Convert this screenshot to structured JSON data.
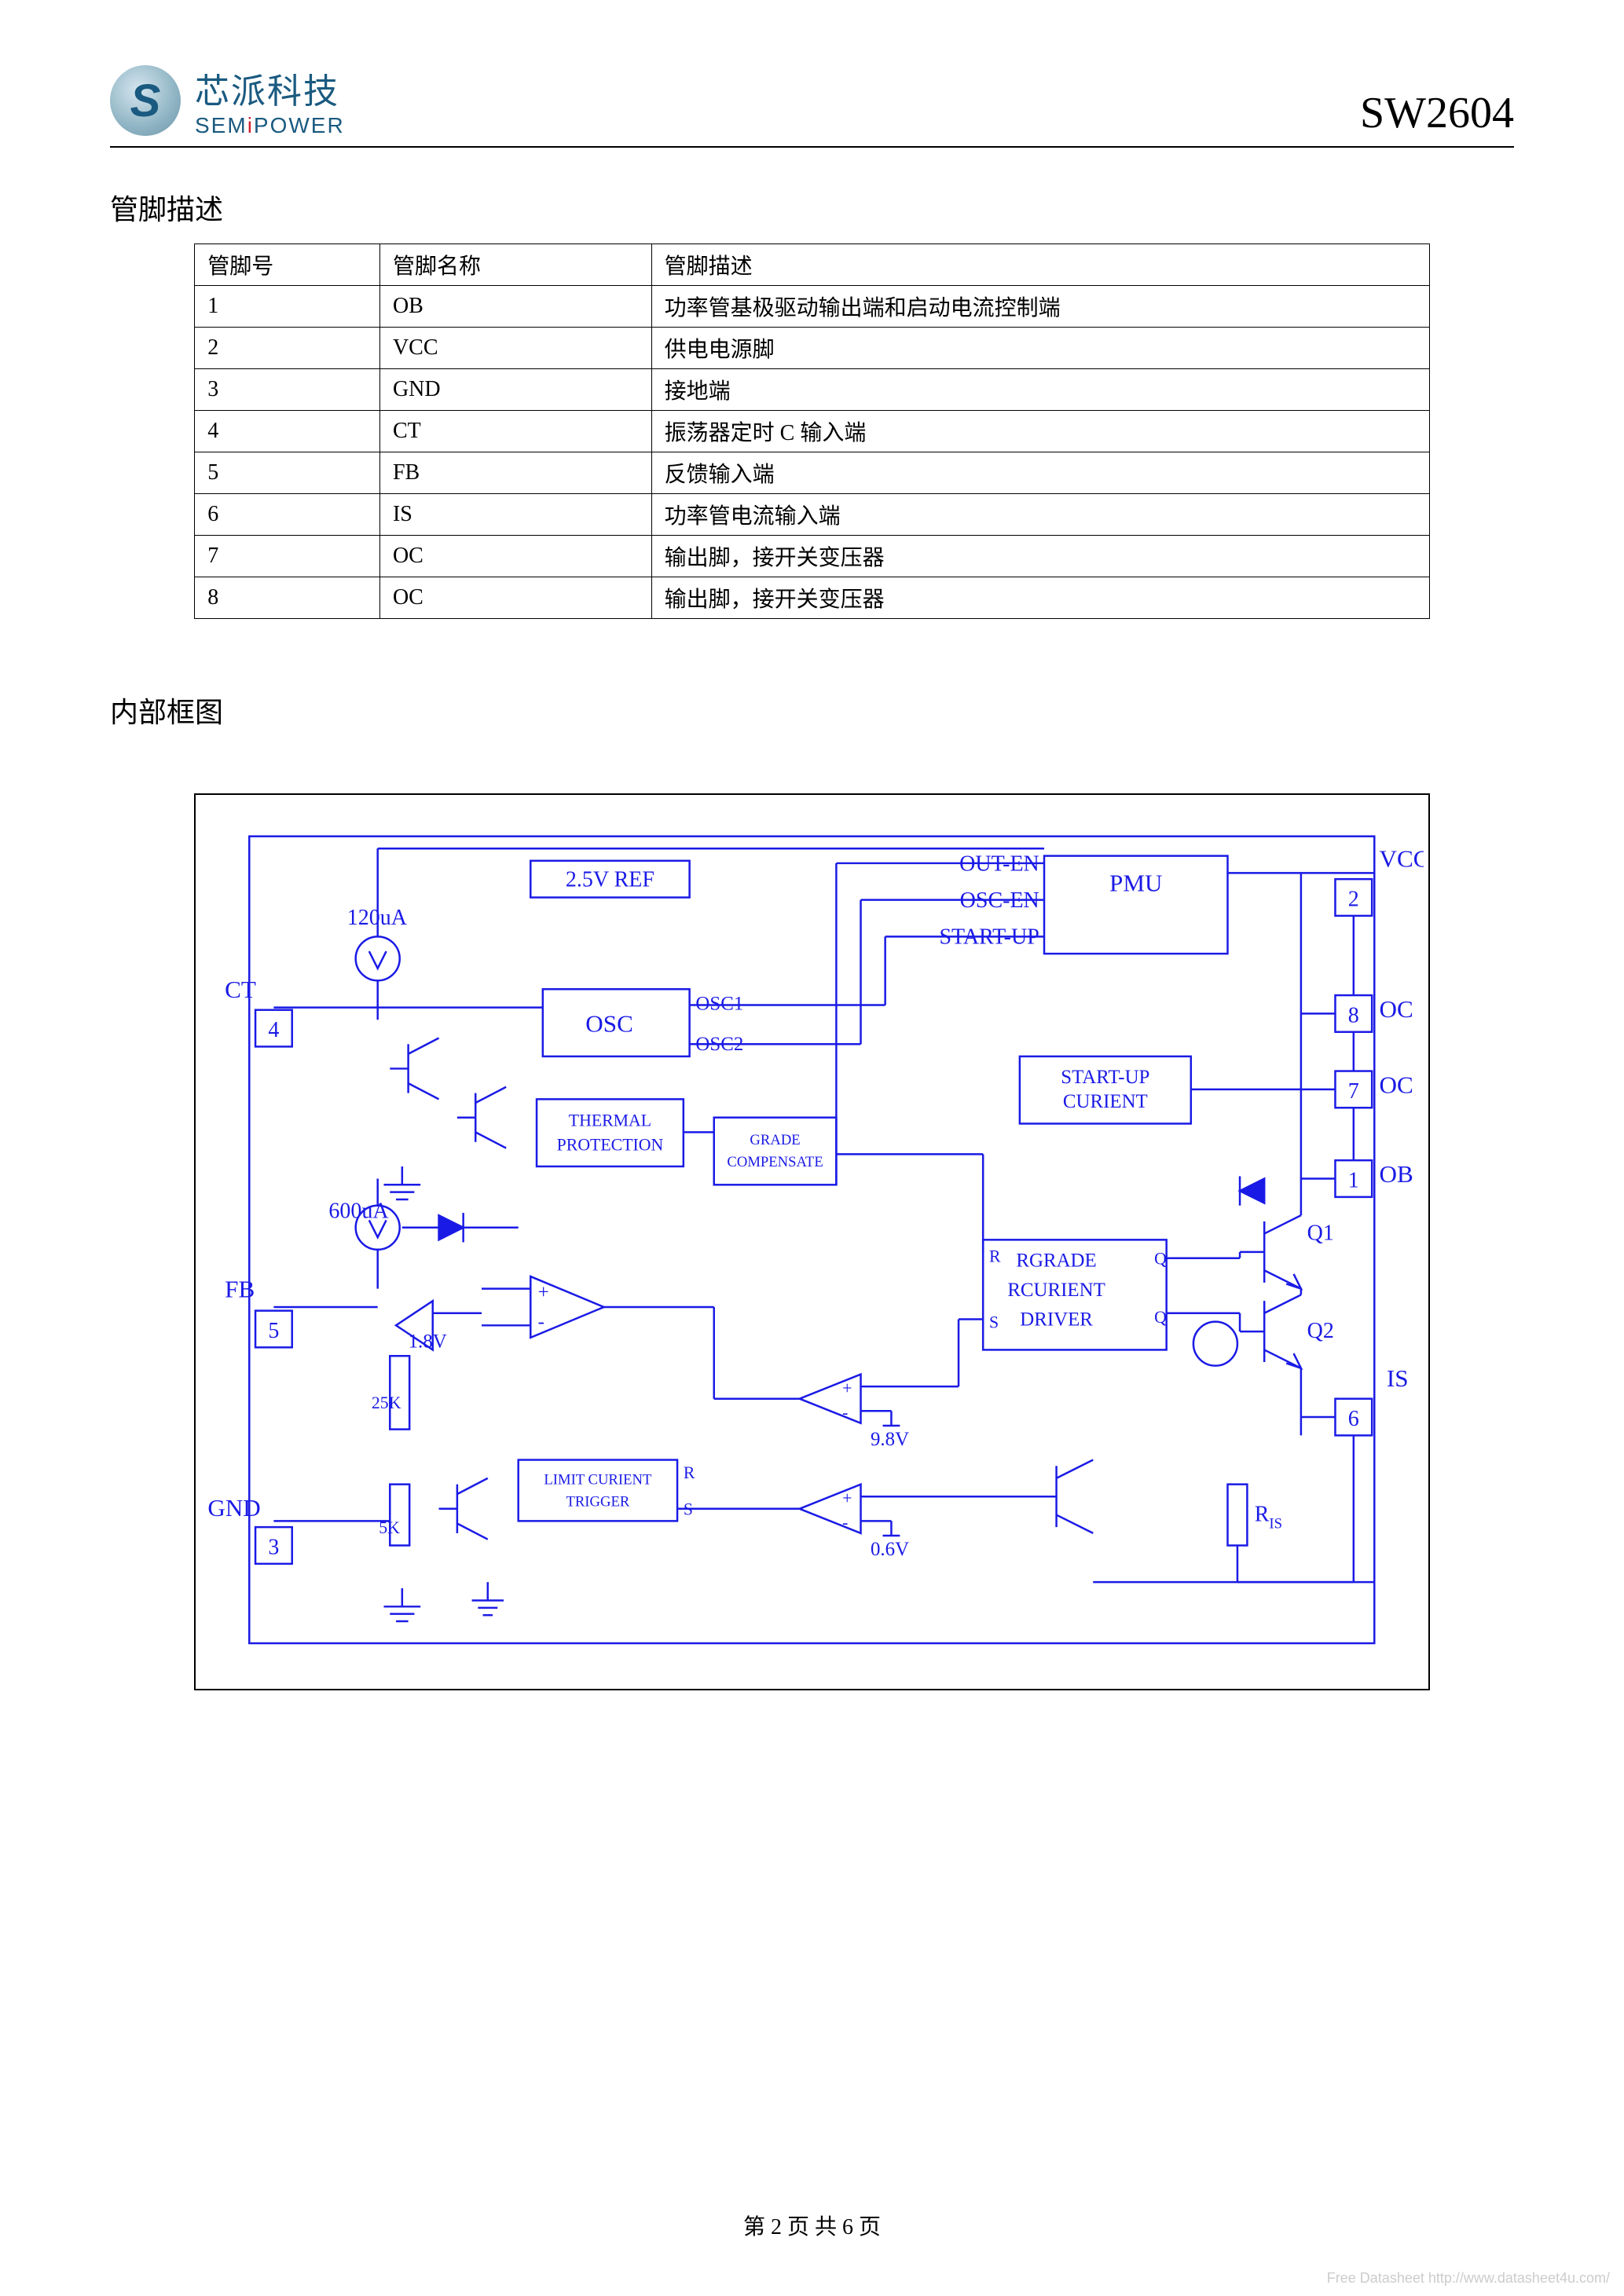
{
  "header": {
    "logo_letter": "S",
    "company_cn": "芯派科技",
    "company_en_pre": "SEM",
    "company_en_i": "i",
    "company_en_post": "POWER",
    "part_number": "SW2604"
  },
  "sections": {
    "pin_desc_title": "管脚描述",
    "block_diagram_title": "内部框图"
  },
  "pin_table": {
    "columns": [
      "管脚号",
      "管脚名称",
      "管脚描述"
    ],
    "rows": [
      [
        "1",
        "OB",
        "功率管基极驱动输出端和启动电流控制端"
      ],
      [
        "2",
        "VCC",
        "供电电源脚"
      ],
      [
        "3",
        "GND",
        "接地端"
      ],
      [
        "4",
        "CT",
        "振荡器定时 C 输入端"
      ],
      [
        "5",
        "FB",
        "反馈输入端"
      ],
      [
        "6",
        "IS",
        "功率管电流输入端"
      ],
      [
        "7",
        "OC",
        "输出脚，接开关变压器"
      ],
      [
        "8",
        "OC",
        "输出脚，接开关变压器"
      ]
    ]
  },
  "diagram": {
    "frame_color": "#1a1ae6",
    "text_color": "#1a1ae6",
    "stroke_width": 1.6,
    "font_size_small": 18,
    "font_size_label": 20,
    "blocks": {
      "ref": "2.5V  REF",
      "osc": "OSC",
      "osc1": "OSC1",
      "osc2": "OSC2",
      "thermal1": "THERMAL",
      "thermal2": "PROTECTION",
      "grade1": "GRADE",
      "grade2": "COMPENSATE",
      "pmu": "PMU",
      "start1": "START-UP",
      "start2": "CURIENT",
      "drv1": "RGRADE",
      "drv2": "RCURIENT",
      "drv3": "DRIVER",
      "drv_r": "R",
      "drv_q": "Q",
      "drv_s": "S",
      "lim1": "LIMIT CURIENT",
      "lim2": "TRIGGER",
      "lim_r": "R",
      "lim_s": "S"
    },
    "values": {
      "i120": "120uA",
      "i600": "600uA",
      "v18": "1.8V",
      "v98": "9.8V",
      "v06": "0.6V",
      "r25k": "25K",
      "r5k": "5K",
      "ris": "R",
      "ris_sub": "IS",
      "q1": "Q1",
      "q2": "Q2"
    },
    "signals": {
      "out_en": "OUT-EN",
      "osc_en": "OSC-EN",
      "start_up": "START-UP"
    },
    "pins": {
      "ct": {
        "num": "4",
        "label": "CT"
      },
      "fb": {
        "num": "5",
        "label": "FB"
      },
      "gnd": {
        "num": "3",
        "label": "GND"
      },
      "vcc": {
        "num": "2",
        "label": "VCC"
      },
      "oc8": {
        "num": "8",
        "label": "OC"
      },
      "oc7": {
        "num": "7",
        "label": "OC"
      },
      "ob": {
        "num": "1",
        "label": "OB"
      },
      "is": {
        "num": "6",
        "label": "IS"
      }
    }
  },
  "footer": {
    "text_pre": "第 ",
    "page": "2",
    "text_mid": " 页 共 ",
    "total": "6",
    "text_post": " 页"
  },
  "watermark": "Free Datasheet http://www.datasheet4u.com/"
}
